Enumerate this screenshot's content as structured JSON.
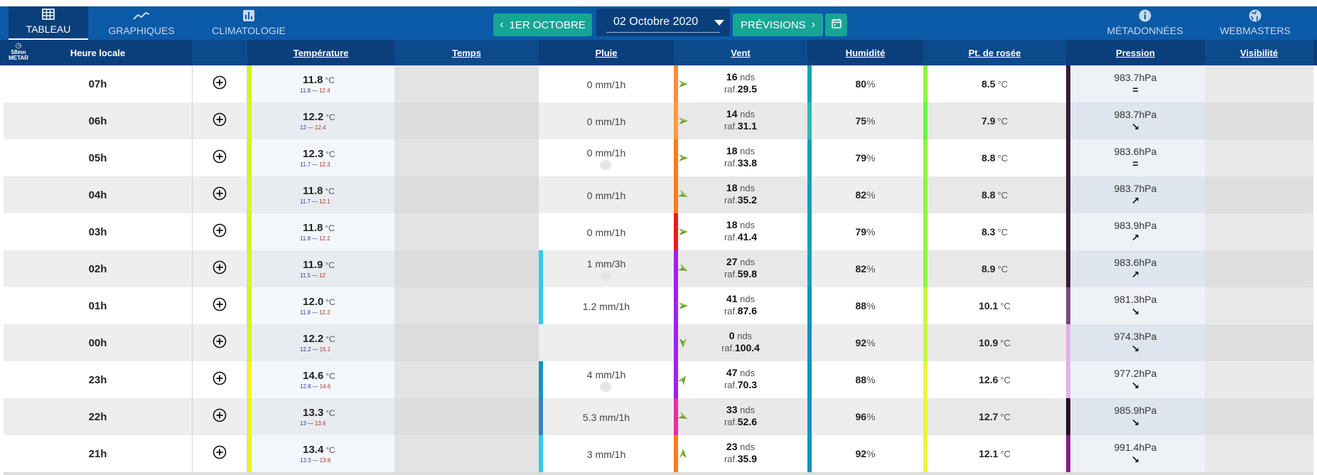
{
  "nav": {
    "tableau": "TABLEAU",
    "graphiques": "GRAPHIQUES",
    "climatologie": "CLIMATOLOGIE",
    "metadonnees": "MÉTADONNÉES",
    "webmasters": "WEBMASTERS"
  },
  "date_nav": {
    "prev_label": "1ER OCTOBRE",
    "current_date": "02 Octobre 2020",
    "next_label": "PRÉVISIONS"
  },
  "sort_toggle": {
    "line1": "58mn",
    "line2": "METAR"
  },
  "headers": {
    "hour": "Heure locale",
    "temperature": "Température",
    "temps": "Temps",
    "pluie": "Pluie",
    "vent": "Vent",
    "humidite": "Humidité",
    "rosee": "Pt. de rosée",
    "pression": "Pression",
    "visibilite": "Visibilité"
  },
  "units": {
    "temp": "°C",
    "wind": "nds",
    "gust": "raf.",
    "hum": "%",
    "pres": "hPa"
  },
  "colors": {
    "header_bg": "#0a3f7c",
    "topbar_bg": "#0b5aa8",
    "button_teal": "#17a596"
  },
  "rows": [
    {
      "hour": "07h",
      "temp": "11.8",
      "tmin": "11.8",
      "tmax": "12.4",
      "temp_color": "#d6f51f",
      "rain": "0 mm/1h",
      "rain_icon": false,
      "rain_color": "",
      "wind": "16",
      "gust": "29.5",
      "wind_color": "#ff8c3a",
      "wind_dir": "right",
      "hum": "80",
      "hum_color": "#1aa0b5",
      "dew": "8.5",
      "dew_color": "#8ff542",
      "pres": "983.7",
      "trend": "=",
      "pres_color": "#3b1a3b"
    },
    {
      "hour": "06h",
      "temp": "12.2",
      "tmin": "12",
      "tmax": "12.4",
      "temp_color": "#d6f51f",
      "rain": "0 mm/1h",
      "rain_icon": false,
      "rain_color": "",
      "wind": "14",
      "gust": "31.1",
      "wind_color": "#ff9a3a",
      "wind_dir": "right",
      "hum": "75",
      "hum_color": "#37b3b3",
      "dew": "7.9",
      "dew_color": "#6cf545",
      "pres": "983.7",
      "trend": "↘",
      "pres_color": "#3b1a3b"
    },
    {
      "hour": "05h",
      "temp": "12.3",
      "tmin": "11.7",
      "tmax": "12.3",
      "temp_color": "#d6f51f",
      "rain": "0 mm/1h",
      "rain_icon": true,
      "rain_color": "",
      "wind": "18",
      "gust": "33.8",
      "wind_color": "#ff7a1a",
      "wind_dir": "right",
      "hum": "79",
      "hum_color": "#1aa0b5",
      "dew": "8.8",
      "dew_color": "#8ff542",
      "pres": "983.6",
      "trend": "=",
      "pres_color": "#3b1a3b"
    },
    {
      "hour": "04h",
      "temp": "11.8",
      "tmin": "11.7",
      "tmax": "12.1",
      "temp_color": "#d6f51f",
      "rain": "0 mm/1h",
      "rain_icon": false,
      "rain_color": "",
      "wind": "18",
      "gust": "35.2",
      "wind_color": "#ff7a1a",
      "wind_dir": "right-down",
      "hum": "82",
      "hum_color": "#1aa0b5",
      "dew": "8.8",
      "dew_color": "#8ff542",
      "pres": "983.7",
      "trend": "↗",
      "pres_color": "#3b1a3b"
    },
    {
      "hour": "03h",
      "temp": "11.8",
      "tmin": "11.8",
      "tmax": "12.2",
      "temp_color": "#d6f51f",
      "rain": "0 mm/1h",
      "rain_icon": false,
      "rain_color": "",
      "wind": "18",
      "gust": "41.4",
      "wind_color": "#ee1a1a",
      "wind_dir": "right",
      "hum": "79",
      "hum_color": "#1aa0b5",
      "dew": "8.3",
      "dew_color": "#8ff542",
      "pres": "983.9",
      "trend": "↗",
      "pres_color": "#3b1a3b"
    },
    {
      "hour": "02h",
      "temp": "11.9",
      "tmin": "11.5",
      "tmax": "12",
      "temp_color": "#d6f51f",
      "rain": "1 mm/3h",
      "rain_icon": true,
      "rain_color": "#36c8e8",
      "wind": "27",
      "gust": "59.8",
      "wind_color": "#a020f0",
      "wind_dir": "right-down",
      "hum": "82",
      "hum_color": "#1aa0b5",
      "dew": "8.9",
      "dew_color": "#8ff542",
      "pres": "983.6",
      "trend": "↗",
      "pres_color": "#3b1a3b"
    },
    {
      "hour": "01h",
      "temp": "12.0",
      "tmin": "11.8",
      "tmax": "12.2",
      "temp_color": "#d6f51f",
      "rain": "1.2 mm/1h",
      "rain_icon": false,
      "rain_color": "#36c8e8",
      "wind": "41",
      "gust": "87.6",
      "wind_color": "#a020f0",
      "wind_dir": "right",
      "hum": "88",
      "hum_color": "#1a90c0",
      "dew": "10.1",
      "dew_color": "#c8f545",
      "pres": "981.3",
      "trend": "↘",
      "pres_color": "#7a4a7a"
    },
    {
      "hour": "00h",
      "temp": "12.2",
      "tmin": "12.2",
      "tmax": "15.1",
      "temp_color": "#d6f51f",
      "rain": "",
      "rain_icon": false,
      "rain_color": "",
      "wind": "0",
      "gust": "100.4",
      "wind_color": "#a020f0",
      "wind_dir": "down",
      "hum": "92",
      "hum_color": "#1a90c0",
      "dew": "10.9",
      "dew_color": "#c8f545",
      "pres": "974.3",
      "trend": "↘",
      "pres_color": "#e8b0e0"
    },
    {
      "hour": "23h",
      "temp": "14.6",
      "tmin": "12.8",
      "tmax": "14.6",
      "temp_color": "#f5f51f",
      "rain": "4 mm/1h",
      "rain_icon": true,
      "rain_color": "#1a90c0",
      "wind": "47",
      "gust": "70.3",
      "wind_color": "#a020f0",
      "wind_dir": "up-right",
      "hum": "88",
      "hum_color": "#1a90c0",
      "dew": "12.6",
      "dew_color": "#e8f545",
      "pres": "977.2",
      "trend": "↘",
      "pres_color": "#e8b0e0"
    },
    {
      "hour": "22h",
      "temp": "13.3",
      "tmin": "13",
      "tmax": "13.6",
      "temp_color": "#e8f51f",
      "rain": "5.3 mm/1h",
      "rain_icon": false,
      "rain_color": "#3a7fc0",
      "wind": "33",
      "gust": "52.6",
      "wind_color": "#ee2aa0",
      "wind_dir": "right-down",
      "hum": "96",
      "hum_color": "#1a90c0",
      "dew": "12.7",
      "dew_color": "#e8f545",
      "pres": "985.9",
      "trend": "↘",
      "pres_color": "#2a0a2a"
    },
    {
      "hour": "21h",
      "temp": "13.4",
      "tmin": "13.3",
      "tmax": "13.8",
      "temp_color": "#e8f51f",
      "rain": "3 mm/1h",
      "rain_icon": false,
      "rain_color": "#36c8e8",
      "wind": "23",
      "gust": "35.9",
      "wind_color": "#ff7a1a",
      "wind_dir": "up",
      "hum": "92",
      "hum_color": "#1a90c0",
      "dew": "12.1",
      "dew_color": "#e8f545",
      "pres": "991.4",
      "trend": "↘",
      "pres_color": "#8a1a8a"
    }
  ]
}
